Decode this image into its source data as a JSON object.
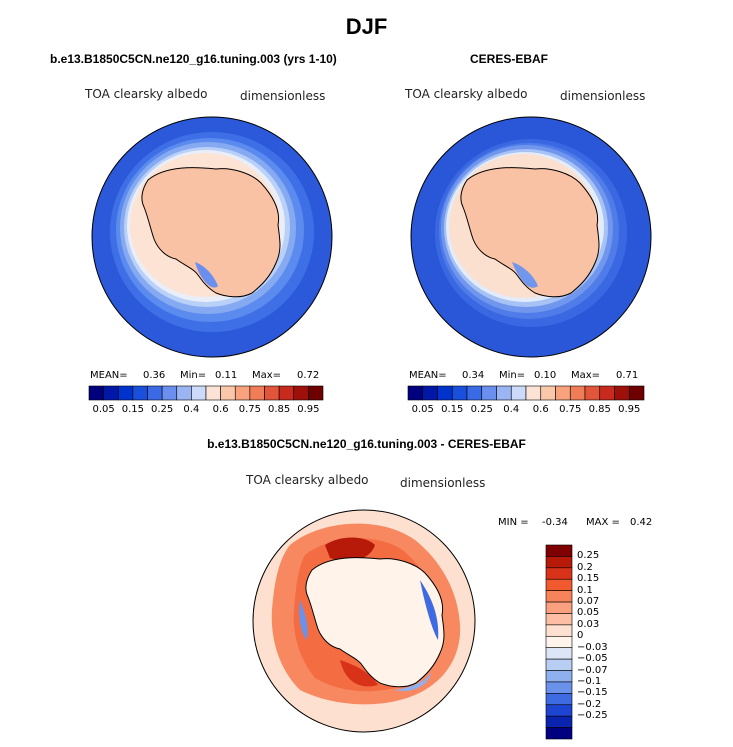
{
  "figure": {
    "title": "DJF",
    "colors": {
      "land": "#f9c2a5",
      "coast": "#000000",
      "bg": "#ffffff"
    }
  },
  "panels": [
    {
      "id": "model",
      "title": "b.e13.B1850C5CN.ne120_g16.tuning.003 (yrs 1-10)",
      "variable": "TOA clearsky albedo",
      "units": "dimensionless",
      "mean_label": "MEAN=",
      "mean": "0.36",
      "min_label": "Min=",
      "min": "0.11",
      "max_label": "Max=",
      "max": "0.72",
      "ring_colors": [
        "#2b59d9",
        "#3e6fe6",
        "#5b8bee",
        "#86aaf2",
        "#b9d0f8",
        "#e9eef8",
        "#fde3d3",
        "#f9c2a5"
      ]
    },
    {
      "id": "obs",
      "title": "CERES-EBAF",
      "variable": "TOA clearsky albedo",
      "units": "dimensionless",
      "mean_label": "MEAN=",
      "mean": "0.34",
      "min_label": "Min=",
      "min": "0.10",
      "max_label": "Max=",
      "max": "0.71",
      "ring_colors": [
        "#2a57d7",
        "#3a68e2",
        "#4f7ce8",
        "#7096ee",
        "#a7c2f5",
        "#e3ecfa",
        "#fbe0cf",
        "#f9c2a5"
      ]
    }
  ],
  "abs_colorbar": {
    "colors": [
      "#00007f",
      "#0017a8",
      "#0033cc",
      "#1a4fdc",
      "#3b6ae6",
      "#6b8fee",
      "#9ab4f4",
      "#cbdaf9",
      "#fbe4d6",
      "#fbc7a9",
      "#f8a27e",
      "#f07d58",
      "#e1553a",
      "#c92a1e",
      "#a0100a",
      "#6e0000"
    ],
    "tick_labels": [
      "0.05",
      "0.15",
      "0.25",
      "0.4",
      "0.6",
      "0.75",
      "0.85",
      "0.95"
    ]
  },
  "diff_panel": {
    "title": "b.e13.B1850C5CN.ne120_g16.tuning.003 - CERES-EBAF",
    "variable": "TOA clearsky albedo",
    "units": "dimensionless",
    "min_label": "MIN =",
    "min": "-0.34",
    "max_label": "MAX =",
    "max": "0.42",
    "colorbar": {
      "colors": [
        "#7f0000",
        "#b81a0a",
        "#d83218",
        "#f05a2e",
        "#f7835a",
        "#fba07e",
        "#fdbfa3",
        "#fde0cf",
        "#fff3ea",
        "#dce6f7",
        "#b9cef3",
        "#8fb0ee",
        "#6b92ea",
        "#3f6be2",
        "#1d45d2",
        "#0a24b0",
        "#000080"
      ],
      "tick_labels": [
        "0.25",
        "0.2",
        "0.15",
        "0.1",
        "0.07",
        "0.05",
        "0.03",
        "0",
        "−0.03",
        "−0.05",
        "−0.07",
        "−0.1",
        "−0.15",
        "−0.2",
        "−0.25"
      ]
    }
  }
}
